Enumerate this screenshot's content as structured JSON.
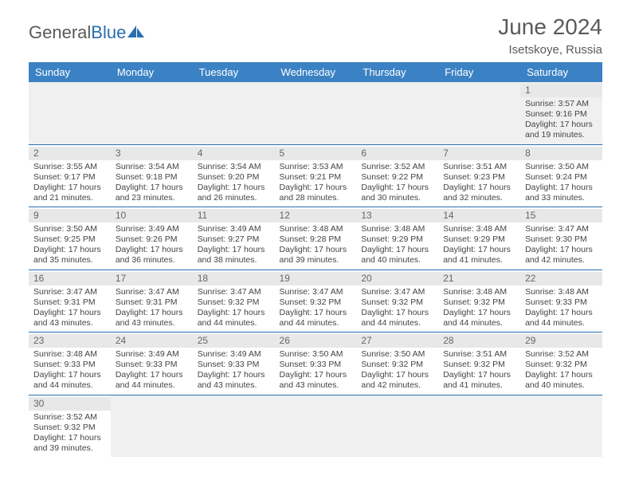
{
  "logo": {
    "part1": "General",
    "part2": "Blue"
  },
  "title": {
    "month": "June 2024",
    "location": "Isetskoye, Russia"
  },
  "colors": {
    "header_bg": "#3b82c4",
    "header_text": "#ffffff",
    "rule": "#2a6fb0",
    "daynum_bg": "#e8e8e8",
    "text": "#444444",
    "logo_gray": "#5a5a5a",
    "logo_blue": "#2a6fb0"
  },
  "weekdays": [
    "Sunday",
    "Monday",
    "Tuesday",
    "Wednesday",
    "Thursday",
    "Friday",
    "Saturday"
  ],
  "weeks": [
    [
      null,
      null,
      null,
      null,
      null,
      null,
      {
        "d": "1",
        "sr": "3:57 AM",
        "ss": "9:16 PM",
        "dh": "17",
        "dm": "19"
      }
    ],
    [
      {
        "d": "2",
        "sr": "3:55 AM",
        "ss": "9:17 PM",
        "dh": "17",
        "dm": "21"
      },
      {
        "d": "3",
        "sr": "3:54 AM",
        "ss": "9:18 PM",
        "dh": "17",
        "dm": "23"
      },
      {
        "d": "4",
        "sr": "3:54 AM",
        "ss": "9:20 PM",
        "dh": "17",
        "dm": "26"
      },
      {
        "d": "5",
        "sr": "3:53 AM",
        "ss": "9:21 PM",
        "dh": "17",
        "dm": "28"
      },
      {
        "d": "6",
        "sr": "3:52 AM",
        "ss": "9:22 PM",
        "dh": "17",
        "dm": "30"
      },
      {
        "d": "7",
        "sr": "3:51 AM",
        "ss": "9:23 PM",
        "dh": "17",
        "dm": "32"
      },
      {
        "d": "8",
        "sr": "3:50 AM",
        "ss": "9:24 PM",
        "dh": "17",
        "dm": "33"
      }
    ],
    [
      {
        "d": "9",
        "sr": "3:50 AM",
        "ss": "9:25 PM",
        "dh": "17",
        "dm": "35"
      },
      {
        "d": "10",
        "sr": "3:49 AM",
        "ss": "9:26 PM",
        "dh": "17",
        "dm": "36"
      },
      {
        "d": "11",
        "sr": "3:49 AM",
        "ss": "9:27 PM",
        "dh": "17",
        "dm": "38"
      },
      {
        "d": "12",
        "sr": "3:48 AM",
        "ss": "9:28 PM",
        "dh": "17",
        "dm": "39"
      },
      {
        "d": "13",
        "sr": "3:48 AM",
        "ss": "9:29 PM",
        "dh": "17",
        "dm": "40"
      },
      {
        "d": "14",
        "sr": "3:48 AM",
        "ss": "9:29 PM",
        "dh": "17",
        "dm": "41"
      },
      {
        "d": "15",
        "sr": "3:47 AM",
        "ss": "9:30 PM",
        "dh": "17",
        "dm": "42"
      }
    ],
    [
      {
        "d": "16",
        "sr": "3:47 AM",
        "ss": "9:31 PM",
        "dh": "17",
        "dm": "43"
      },
      {
        "d": "17",
        "sr": "3:47 AM",
        "ss": "9:31 PM",
        "dh": "17",
        "dm": "43"
      },
      {
        "d": "18",
        "sr": "3:47 AM",
        "ss": "9:32 PM",
        "dh": "17",
        "dm": "44"
      },
      {
        "d": "19",
        "sr": "3:47 AM",
        "ss": "9:32 PM",
        "dh": "17",
        "dm": "44"
      },
      {
        "d": "20",
        "sr": "3:47 AM",
        "ss": "9:32 PM",
        "dh": "17",
        "dm": "44"
      },
      {
        "d": "21",
        "sr": "3:48 AM",
        "ss": "9:32 PM",
        "dh": "17",
        "dm": "44"
      },
      {
        "d": "22",
        "sr": "3:48 AM",
        "ss": "9:33 PM",
        "dh": "17",
        "dm": "44"
      }
    ],
    [
      {
        "d": "23",
        "sr": "3:48 AM",
        "ss": "9:33 PM",
        "dh": "17",
        "dm": "44"
      },
      {
        "d": "24",
        "sr": "3:49 AM",
        "ss": "9:33 PM",
        "dh": "17",
        "dm": "44"
      },
      {
        "d": "25",
        "sr": "3:49 AM",
        "ss": "9:33 PM",
        "dh": "17",
        "dm": "43"
      },
      {
        "d": "26",
        "sr": "3:50 AM",
        "ss": "9:33 PM",
        "dh": "17",
        "dm": "43"
      },
      {
        "d": "27",
        "sr": "3:50 AM",
        "ss": "9:32 PM",
        "dh": "17",
        "dm": "42"
      },
      {
        "d": "28",
        "sr": "3:51 AM",
        "ss": "9:32 PM",
        "dh": "17",
        "dm": "41"
      },
      {
        "d": "29",
        "sr": "3:52 AM",
        "ss": "9:32 PM",
        "dh": "17",
        "dm": "40"
      }
    ],
    [
      {
        "d": "30",
        "sr": "3:52 AM",
        "ss": "9:32 PM",
        "dh": "17",
        "dm": "39"
      },
      null,
      null,
      null,
      null,
      null,
      null
    ]
  ],
  "labels": {
    "sunrise": "Sunrise:",
    "sunset": "Sunset:",
    "daylight_prefix": "Daylight:",
    "hours_word": "hours",
    "and_word": "and",
    "minutes_word": "minutes."
  }
}
